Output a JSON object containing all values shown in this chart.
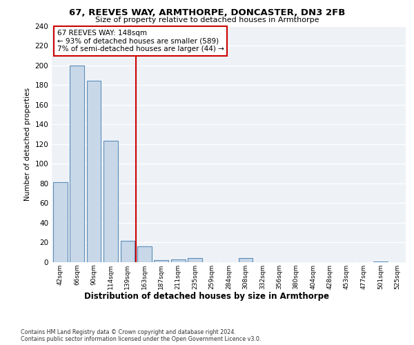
{
  "title1": "67, REEVES WAY, ARMTHORPE, DONCASTER, DN3 2FB",
  "title2": "Size of property relative to detached houses in Armthorpe",
  "xlabel": "Distribution of detached houses by size in Armthorpe",
  "ylabel": "Number of detached properties",
  "categories": [
    "42sqm",
    "66sqm",
    "90sqm",
    "114sqm",
    "139sqm",
    "163sqm",
    "187sqm",
    "211sqm",
    "235sqm",
    "259sqm",
    "284sqm",
    "308sqm",
    "332sqm",
    "356sqm",
    "380sqm",
    "404sqm",
    "428sqm",
    "453sqm",
    "477sqm",
    "501sqm",
    "525sqm"
  ],
  "values": [
    81,
    200,
    184,
    123,
    22,
    16,
    2,
    3,
    4,
    0,
    0,
    4,
    0,
    0,
    0,
    0,
    0,
    0,
    0,
    1,
    0
  ],
  "bar_color": "#c8d8e8",
  "bar_edgecolor": "#5b8db8",
  "highlight_line_color": "#cc0000",
  "annotation_text": "67 REEVES WAY: 148sqm\n← 93% of detached houses are smaller (589)\n7% of semi-detached houses are larger (44) →",
  "ylim": [
    0,
    240
  ],
  "yticks": [
    0,
    20,
    40,
    60,
    80,
    100,
    120,
    140,
    160,
    180,
    200,
    220,
    240
  ],
  "background_color": "#eef2f7",
  "footer_line1": "Contains HM Land Registry data © Crown copyright and database right 2024.",
  "footer_line2": "Contains public sector information licensed under the Open Government Licence v3.0."
}
